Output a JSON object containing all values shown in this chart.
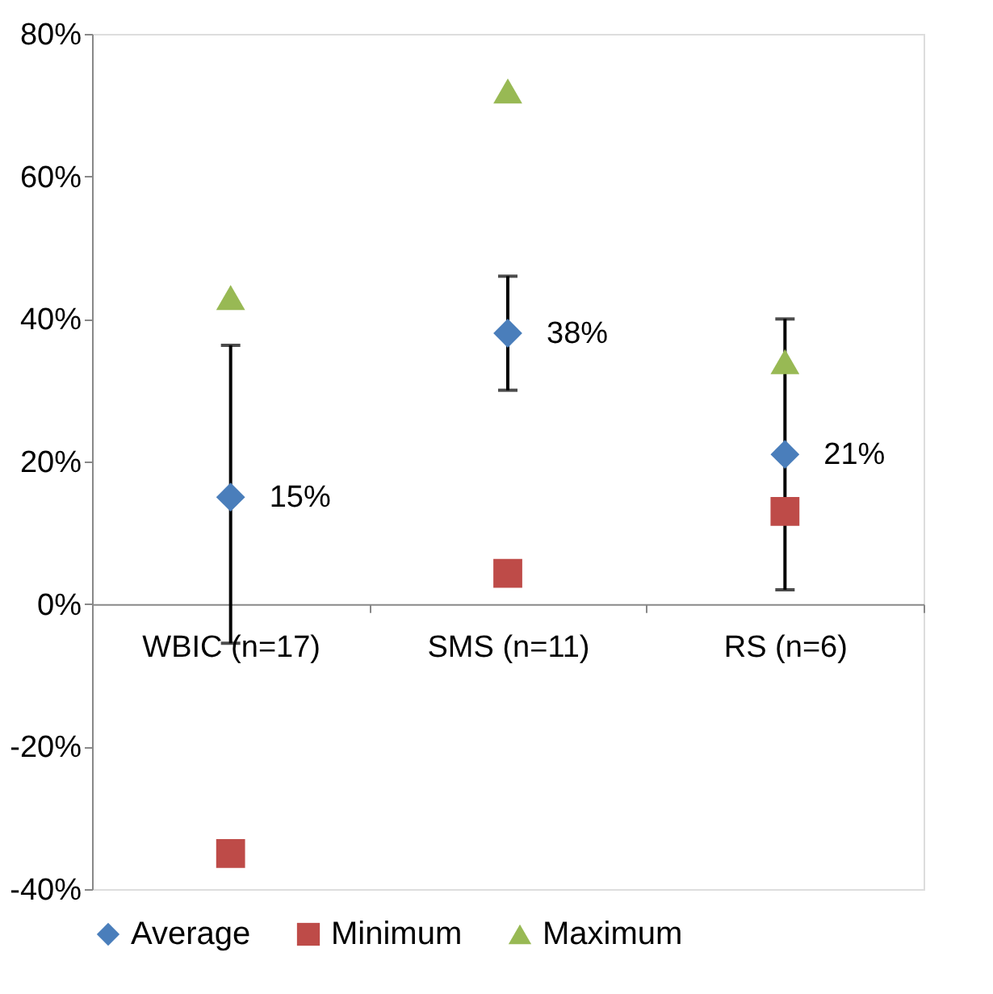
{
  "chart_data": {
    "type": "scatter",
    "categories": [
      "WBIC (n=17)",
      "SMS (n=11)",
      "RS (n=6)"
    ],
    "series": [
      {
        "name": "Average",
        "color": "#4a7ebb",
        "marker": "diamond",
        "values": [
          15,
          38,
          21
        ],
        "value_labels": [
          "15%",
          "38%",
          "21%"
        ],
        "errors": [
          [
            -5.5,
            36.3
          ],
          [
            30,
            46
          ],
          [
            2,
            40
          ]
        ]
      },
      {
        "name": "Minimum",
        "color": "#be4b48",
        "marker": "square",
        "values": [
          -35,
          4.3,
          13
        ]
      },
      {
        "name": "Maximum",
        "color": "#98b954",
        "marker": "triangle",
        "values": [
          43,
          72,
          34
        ]
      }
    ],
    "ylim": [
      -40,
      80
    ],
    "yticks": [
      {
        "value": -40,
        "label": "-40%"
      },
      {
        "value": -20,
        "label": "-20%"
      },
      {
        "value": 0,
        "label": "0%"
      },
      {
        "value": 20,
        "label": "20%"
      },
      {
        "value": 40,
        "label": "40%"
      },
      {
        "value": 60,
        "label": "60%"
      },
      {
        "value": 80,
        "label": "80%"
      }
    ],
    "grid": false,
    "legend": "bottom"
  }
}
